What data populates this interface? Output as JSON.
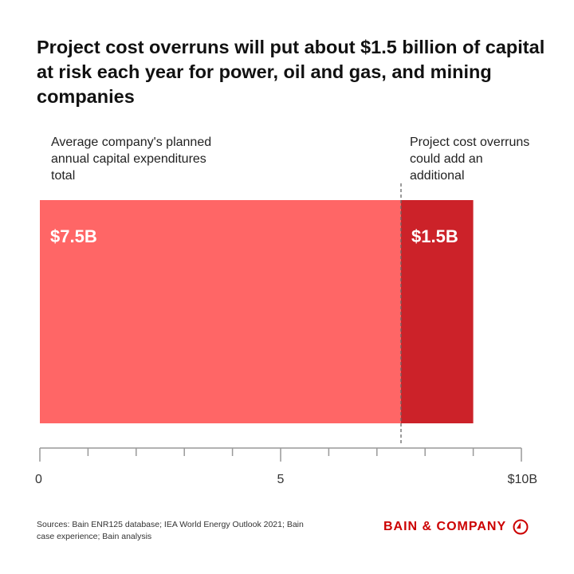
{
  "title": "Project cost overruns will put about $1.5 billion of capital at risk each year for power, oil and gas, and mining companies",
  "annotations": {
    "left": "Average company's planned annual capital expenditures total",
    "right": "Project cost overruns could add an additional"
  },
  "sources": "Sources: Bain ENR125 database; IEA World Energy Outlook 2021; Bain case experience; Bain analysis",
  "logo": "BAIN & COMPANY",
  "colors": {
    "base": "#ff6666",
    "overrun": "#cc2229",
    "logo": "#cc0000"
  },
  "chart_data": {
    "type": "bar",
    "orientation": "horizontal-stacked",
    "series": [
      {
        "value": 7.5,
        "label": "$7.5B",
        "color": "#ff6666"
      },
      {
        "value": 1.5,
        "label": "$1.5B",
        "color": "#cc2229"
      }
    ],
    "xlim": [
      0,
      10
    ],
    "xticks": [
      0,
      1,
      2,
      3,
      4,
      5,
      6,
      7,
      8,
      9,
      10
    ],
    "xticklabels": [
      {
        "value": 0,
        "label": "0"
      },
      {
        "value": 5,
        "label": "5"
      },
      {
        "value": 10,
        "label": "$10B"
      }
    ],
    "reference_line": 7.5,
    "grid": false
  }
}
